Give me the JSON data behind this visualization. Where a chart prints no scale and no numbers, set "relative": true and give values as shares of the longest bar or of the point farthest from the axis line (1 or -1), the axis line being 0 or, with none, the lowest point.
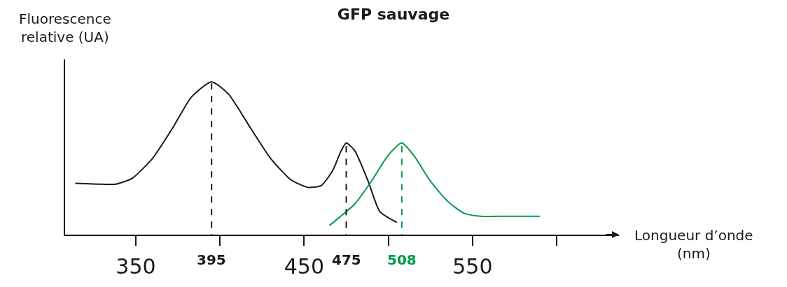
{
  "chart_data": {
    "type": "line",
    "title": "GFP sauvage",
    "ylabel": "Fluorescence\nrelative (UA)",
    "xlabel": "Longueur d’onde\n(nm)",
    "relative": true,
    "legend": false,
    "marker": "none",
    "line_style": "solid",
    "xlim": [
      308,
      637
    ],
    "xticks": [
      350,
      {
        "value": 400,
        "label": null
      },
      450,
      {
        "value": 500,
        "label": null
      },
      550,
      {
        "value": 600,
        "label": null
      }
    ],
    "series": [
      {
        "color": "#1a1a1a",
        "x": [
          314,
          330,
          338,
          348,
          360,
          372,
          383,
          395,
          405,
          418,
          430,
          442,
          452,
          460,
          467,
          472,
          475,
          480,
          488,
          495,
          505
        ],
        "values": [
          0.336,
          0.33,
          0.33,
          0.37,
          0.5,
          0.7,
          0.9,
          1,
          0.92,
          0.7,
          0.5,
          0.36,
          0.31,
          0.32,
          0.42,
          0.55,
          0.6,
          0.55,
          0.35,
          0.15,
          0.08
        ]
      },
      {
        "color": "#009a44",
        "x": [
          465,
          480,
          490,
          500,
          508,
          515,
          525,
          535,
          545,
          555,
          570,
          590
        ],
        "values": [
          0.06,
          0.2,
          0.35,
          0.52,
          0.6,
          0.52,
          0.35,
          0.22,
          0.14,
          0.12,
          0.12,
          0.12
        ]
      }
    ],
    "ref_lines": [
      {
        "axis": "x",
        "value": 395,
        "label": "395",
        "color": "#1a1a1a",
        "line_style": "dashed"
      },
      {
        "axis": "x",
        "value": 475,
        "label": "475",
        "color": "#1a1a1a",
        "line_style": "dashed"
      },
      {
        "axis": "x",
        "value": 508,
        "label": "508",
        "color": "#009a44",
        "line_style": "dashed"
      }
    ]
  }
}
